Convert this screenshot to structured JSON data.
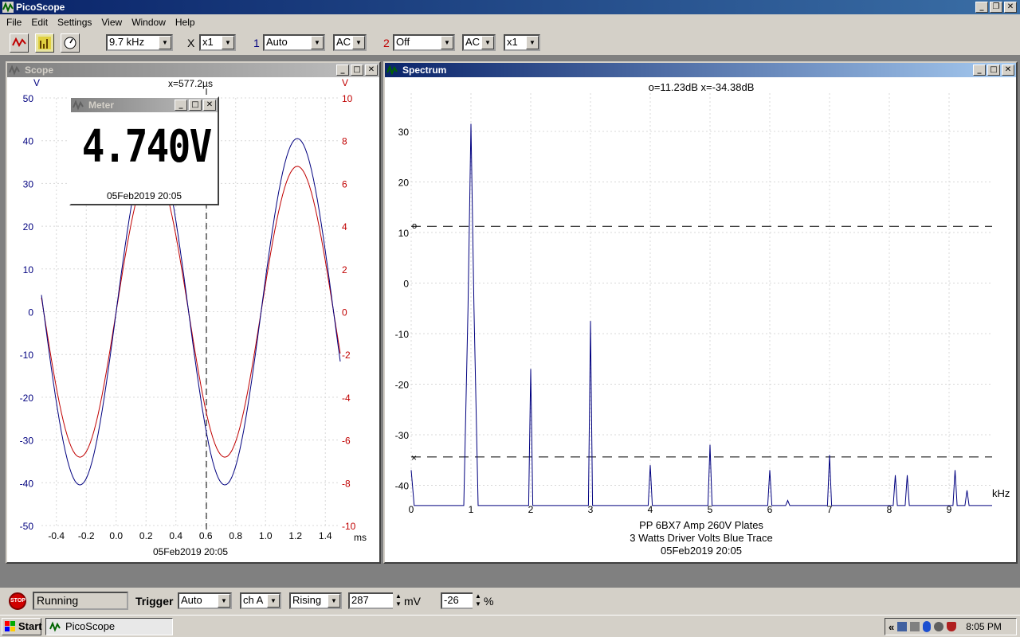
{
  "app": {
    "title": "PicoScope"
  },
  "menu": [
    "File",
    "Edit",
    "Settings",
    "View",
    "Window",
    "Help"
  ],
  "toolbar": {
    "timebase": "9.7 kHz",
    "x_label": "X",
    "x_mult": "x1",
    "ch1_num": "1",
    "ch1_range": "Auto",
    "ch1_coupling": "AC",
    "ch2_num": "2",
    "ch2_range": "Off",
    "ch2_coupling": "AC",
    "ch2_mult": "x1",
    "icons": [
      "scope-mode-icon",
      "spectrum-mode-icon",
      "meter-mode-icon"
    ]
  },
  "scope": {
    "title": "Scope",
    "left_unit": "V",
    "right_unit": "V",
    "cursor": "x=577.2µs",
    "left_ticks": [
      "50",
      "40",
      "30",
      "20",
      "10",
      "0",
      "-10",
      "-20",
      "-30",
      "-40",
      "-50"
    ],
    "right_ticks": [
      "10",
      "8",
      "6",
      "4",
      "2",
      "0",
      "-2",
      "-4",
      "-6",
      "-8",
      "-10"
    ],
    "x_ticks": [
      "-0.4",
      "-0.2",
      "0.0",
      "0.2",
      "0.4",
      "0.6",
      "0.8",
      "1.0",
      "1.2",
      "1.4"
    ],
    "x_unit": "ms",
    "date": "05Feb2019  20:05",
    "colors": {
      "chA": "#00007f",
      "chB": "#c00000"
    }
  },
  "meter": {
    "title": "Meter",
    "value": "4.740V",
    "date": "05Feb2019  20:05"
  },
  "spectrum": {
    "title": "Spectrum",
    "readout": "o=11.23dB  x=-34.38dB",
    "y_ticks": [
      "30",
      "20",
      "10",
      "0",
      "-10",
      "-20",
      "-30",
      "-40"
    ],
    "x_ticks": [
      "0",
      "1",
      "2",
      "3",
      "4",
      "5",
      "6",
      "7",
      "8",
      "9"
    ],
    "x_unit": "kHz",
    "caption1": "PP 6BX7  Amp 260V Plates",
    "caption2": "3 Watts Driver Volts Blue Trace",
    "date": "05Feb2019  20:05"
  },
  "status": {
    "state": "Running",
    "trigger_label": "Trigger",
    "trigger_mode": "Auto",
    "trigger_channel": "ch A",
    "trigger_edge": "Rising",
    "trigger_level": "287",
    "level_unit": "mV",
    "pretrigger": "-26",
    "pre_unit": "%"
  },
  "taskbar": {
    "start": "Start",
    "task": "PicoScope",
    "clock": "8:05 PM",
    "tray_prefix": "«"
  },
  "chart_data": [
    {
      "type": "line",
      "xlabel": "ms",
      "x_range": [
        -0.5,
        1.5
      ],
      "ylim_left": [
        -50,
        50
      ],
      "ylim_right": [
        -10,
        10
      ],
      "series": [
        {
          "x": [
            -0.5,
            -0.25,
            0.0,
            0.25,
            0.5,
            0.73,
            1.0,
            1.23,
            1.5
          ],
          "values": [
            6,
            -40.5,
            0,
            40,
            0,
            -40.5,
            0,
            40.5,
            0
          ]
        },
        {
          "x": [
            -0.5,
            -0.25,
            0.0,
            0.25,
            0.5,
            0.73,
            1.0,
            1.23,
            1.5
          ],
          "values": [
            0.7,
            -6.8,
            0,
            6.8,
            0,
            -6.8,
            0,
            6.8,
            0
          ]
        }
      ]
    },
    {
      "type": "line",
      "xlabel": "kHz",
      "ylim": [
        -44,
        36
      ],
      "x": [
        1.0,
        2.0,
        3.0,
        4.0,
        5.0,
        6.0,
        6.3,
        7.0,
        8.1,
        8.3,
        9.1,
        9.3
      ],
      "series": [
        {
          "values": [
            31.5,
            -17,
            -7.5,
            -36,
            -32,
            -37,
            -43,
            -34,
            -38,
            -38,
            -37,
            -41
          ]
        }
      ],
      "markers": {
        "o": 11.23,
        "x": -34.38
      }
    }
  ]
}
